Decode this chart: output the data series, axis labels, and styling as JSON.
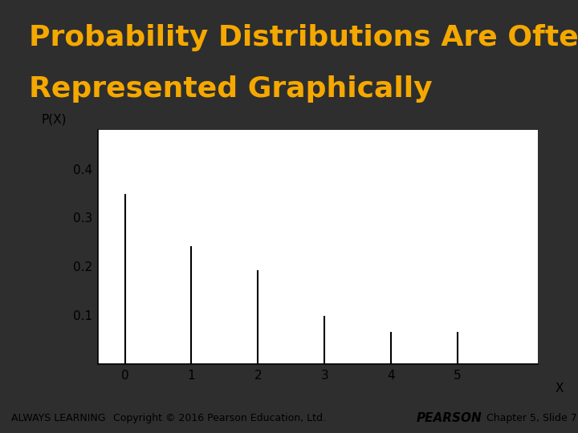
{
  "title_line1": "Probability Distributions Are Often",
  "title_line2": "Represented Graphically",
  "title_color": "#F5A800",
  "background_color": "#2E2E2E",
  "plot_bg_color": "#FFFFFF",
  "x_values": [
    0,
    1,
    2,
    3,
    4,
    5
  ],
  "y_values": [
    0.346,
    0.24,
    0.191,
    0.097,
    0.063,
    0.063
  ],
  "ylabel": "P(X)",
  "xlabel": "X",
  "yticks": [
    0.1,
    0.2,
    0.3,
    0.4
  ],
  "xticks": [
    0,
    1,
    2,
    3,
    4,
    5
  ],
  "ylim": [
    0,
    0.48
  ],
  "xlim": [
    -0.4,
    6.2
  ],
  "line_color": "#000000",
  "footer_bg_color": "#F5A800",
  "footer_text_left": "ALWAYS LEARNING",
  "footer_text_center": "Copyright © 2016 Pearson Education, Ltd.",
  "footer_text_right_bold": "PEARSON",
  "footer_text_right": "  Chapter 5, Slide 7",
  "footer_text_color": "#000000",
  "title_fontsize": 26,
  "footer_fontsize": 10
}
